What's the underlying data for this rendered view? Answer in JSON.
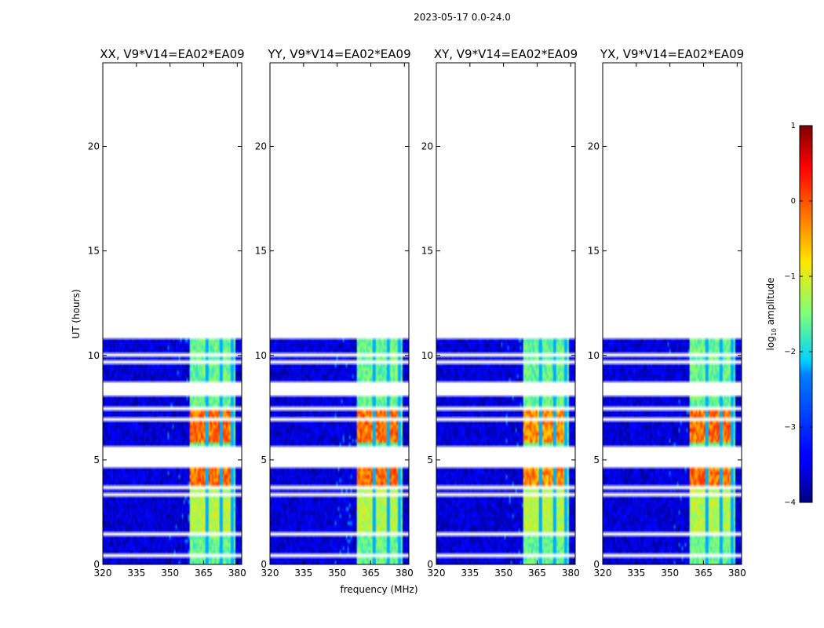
{
  "chart_data": {
    "type": "heatmap",
    "suptitle": "2023-05-17 0.0-24.0",
    "xlabel": "frequency (MHz)",
    "ylabel": "UT (hours)",
    "xlim": [
      320,
      382
    ],
    "ylim": [
      0,
      24
    ],
    "xticks": [
      320,
      335,
      350,
      365,
      380
    ],
    "yticks": [
      0,
      5,
      10,
      15,
      20
    ],
    "data_extent_hours": [
      0,
      10.8
    ],
    "band_MHz": [
      359,
      379
    ],
    "bright_channels_MHz": [
      364,
      370,
      375
    ],
    "panels": [
      {
        "title": "XX, V9*V14=EA02*EA09",
        "band_peak": 0.3,
        "band_base": -1.6
      },
      {
        "title": "YY, V9*V14=EA02*EA09",
        "band_peak": 0.3,
        "band_base": -1.6
      },
      {
        "title": "XY, V9*V14=EA02*EA09",
        "band_peak": 0.1,
        "band_base": -1.6
      },
      {
        "title": "YX, V9*V14=EA02*EA09",
        "band_peak": 0.3,
        "band_base": -1.6
      }
    ],
    "gaps_hours": [
      [
        0.42,
        0.5
      ],
      [
        1.4,
        1.5
      ],
      [
        1.55,
        1.6
      ],
      [
        2.35,
        2.45
      ],
      [
        3.1,
        3.15
      ],
      [
        3.3,
        3.4
      ],
      [
        3.45,
        3.5
      ],
      [
        3.6,
        3.7
      ],
      [
        4.6,
        5.1
      ],
      [
        5.2,
        5.25
      ],
      [
        5.35,
        5.4
      ],
      [
        5.55,
        5.6
      ],
      [
        5.75,
        5.85
      ],
      [
        6.9,
        6.95
      ],
      [
        7.45,
        7.6
      ],
      [
        8.05,
        8.15
      ],
      [
        8.3,
        8.35
      ],
      [
        8.45,
        8.55
      ],
      [
        8.65,
        8.75
      ],
      [
        9.05,
        9.15
      ],
      [
        9.35,
        9.45
      ],
      [
        9.6,
        9.7
      ],
      [
        10.0,
        10.1
      ]
    ],
    "colorbar": {
      "label": "log10 amplitude",
      "label_main": "log",
      "label_sub": "10",
      "label_rest": " amplitude",
      "range": [
        -4,
        1
      ],
      "ticks": [
        "1",
        "0",
        "−1",
        "−2",
        "−3",
        "−4"
      ],
      "colormap": "jet"
    }
  }
}
